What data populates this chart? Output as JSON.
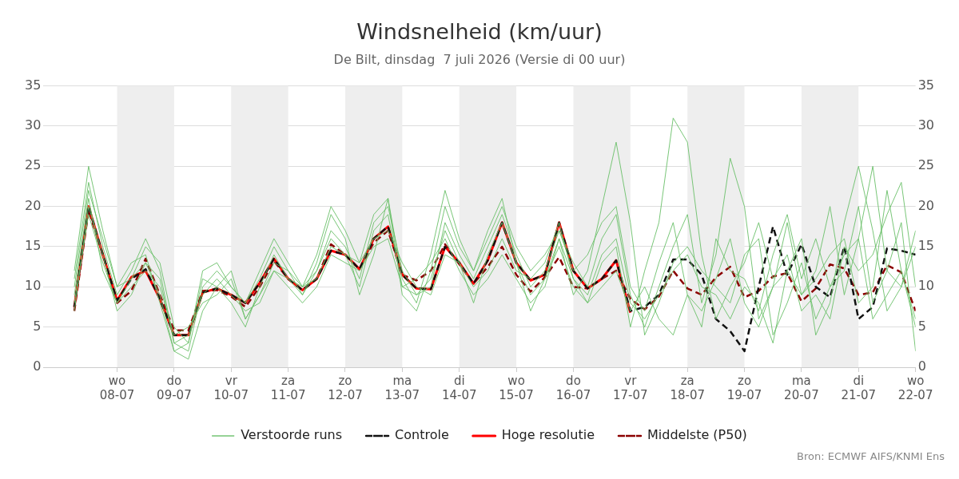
{
  "chart_data": {
    "type": "line",
    "title": "Windsnelheid (km/uur)",
    "subtitle": "De Bilt, dinsdag  7 juli 2026 (Versie di 00 uur)",
    "x": [
      "2026-07-07T06:00",
      "2026-07-07T12:00",
      "2026-07-07T18:00",
      "2026-07-08T00:00",
      "2026-07-08T06:00",
      "2026-07-08T12:00",
      "2026-07-08T18:00",
      "2026-07-09T00:00",
      "2026-07-09T06:00",
      "2026-07-09T12:00",
      "2026-07-09T18:00",
      "2026-07-10T00:00",
      "2026-07-10T06:00",
      "2026-07-10T12:00",
      "2026-07-10T18:00",
      "2026-07-11T00:00",
      "2026-07-11T06:00",
      "2026-07-11T12:00",
      "2026-07-11T18:00",
      "2026-07-12T00:00",
      "2026-07-12T06:00",
      "2026-07-12T12:00",
      "2026-07-12T18:00",
      "2026-07-13T00:00",
      "2026-07-13T06:00",
      "2026-07-13T12:00",
      "2026-07-13T18:00",
      "2026-07-14T00:00",
      "2026-07-14T06:00",
      "2026-07-14T12:00",
      "2026-07-14T18:00",
      "2026-07-15T00:00",
      "2026-07-15T06:00",
      "2026-07-15T12:00",
      "2026-07-15T18:00",
      "2026-07-16T00:00",
      "2026-07-16T06:00",
      "2026-07-16T12:00",
      "2026-07-16T18:00",
      "2026-07-17T00:00",
      "2026-07-17T06:00",
      "2026-07-17T12:00",
      "2026-07-17T18:00",
      "2026-07-18T00:00",
      "2026-07-18T06:00",
      "2026-07-18T12:00",
      "2026-07-18T18:00",
      "2026-07-19T00:00",
      "2026-07-19T06:00",
      "2026-07-19T12:00",
      "2026-07-19T18:00",
      "2026-07-20T00:00",
      "2026-07-20T06:00",
      "2026-07-20T12:00",
      "2026-07-20T18:00",
      "2026-07-21T00:00",
      "2026-07-21T06:00",
      "2026-07-21T12:00",
      "2026-07-21T18:00",
      "2026-07-22T00:00"
    ],
    "xlim": [
      "2026-07-06T17:00",
      "2026-07-22T00:00"
    ],
    "xticks": [
      {
        "value": "2026-07-08",
        "label": "wo\n08-07"
      },
      {
        "value": "2026-07-09",
        "label": "do\n09-07"
      },
      {
        "value": "2026-07-10",
        "label": "vr\n10-07"
      },
      {
        "value": "2026-07-11",
        "label": "za\n11-07"
      },
      {
        "value": "2026-07-12",
        "label": "zo\n12-07"
      },
      {
        "value": "2026-07-13",
        "label": "ma\n13-07"
      },
      {
        "value": "2026-07-14",
        "label": "di\n14-07"
      },
      {
        "value": "2026-07-15",
        "label": "wo\n15-07"
      },
      {
        "value": "2026-07-16",
        "label": "do\n16-07"
      },
      {
        "value": "2026-07-17",
        "label": "vr\n17-07"
      },
      {
        "value": "2026-07-18",
        "label": "za\n18-07"
      },
      {
        "value": "2026-07-19",
        "label": "zo\n19-07"
      },
      {
        "value": "2026-07-20",
        "label": "ma\n20-07"
      },
      {
        "value": "2026-07-21",
        "label": "di\n21-07"
      },
      {
        "value": "2026-07-22",
        "label": "wo\n22-07"
      }
    ],
    "ylim": [
      0,
      35
    ],
    "yticks": [
      0,
      5,
      10,
      15,
      20,
      25,
      30,
      35
    ],
    "y2lim": [
      0,
      35
    ],
    "y2ticks": [
      0,
      5,
      10,
      15,
      20,
      25,
      30,
      35
    ],
    "grid": "y",
    "legend": "bottom",
    "marker": "none",
    "bands": [
      {
        "axis": "x",
        "from": "2026-07-08",
        "to": "2026-07-09",
        "color": "#eeeeee"
      },
      {
        "axis": "x",
        "from": "2026-07-10",
        "to": "2026-07-11",
        "color": "#eeeeee"
      },
      {
        "axis": "x",
        "from": "2026-07-12",
        "to": "2026-07-13",
        "color": "#eeeeee"
      },
      {
        "axis": "x",
        "from": "2026-07-14",
        "to": "2026-07-15",
        "color": "#eeeeee"
      },
      {
        "axis": "x",
        "from": "2026-07-16",
        "to": "2026-07-17",
        "color": "#eeeeee"
      },
      {
        "axis": "x",
        "from": "2026-07-18",
        "to": "2026-07-19",
        "color": "#eeeeee"
      },
      {
        "axis": "x",
        "from": "2026-07-20",
        "to": "2026-07-21",
        "color": "#eeeeee"
      }
    ],
    "series": [
      {
        "name": "Verstoorde runs",
        "color": "#6abf69",
        "line_style": "solid",
        "values": [
          11,
          23,
          15,
          9,
          12,
          16,
          12,
          3,
          2,
          10,
          12,
          10,
          8,
          11,
          15,
          12,
          10,
          12,
          17,
          15,
          11,
          18,
          20,
          12,
          9,
          10,
          18,
          14,
          11,
          15,
          19,
          14,
          10,
          12,
          17,
          13,
          10,
          16,
          19,
          9,
          5,
          10,
          15,
          19,
          8,
          14,
          26,
          20,
          6,
          10,
          18,
          9,
          12,
          20,
          9,
          16,
          25,
          12,
          10,
          17
        ]
      },
      {
        "color": "#6abf69",
        "line_style": "solid",
        "values": [
          8,
          19,
          13,
          8,
          10,
          12,
          10,
          4,
          5,
          8,
          9,
          11,
          6,
          9,
          12,
          10,
          8,
          10,
          14,
          13,
          12,
          15,
          16,
          10,
          11,
          13,
          16,
          12,
          9,
          11,
          14,
          11,
          8,
          10,
          16,
          9,
          12,
          20,
          28,
          18,
          4,
          8,
          13,
          15,
          12,
          10,
          8,
          14,
          16,
          4,
          8,
          13,
          6,
          10,
          14,
          16,
          6,
          9,
          12,
          5
        ]
      },
      {
        "color": "#6abf69",
        "line_style": "solid",
        "values": [
          10,
          22,
          16,
          10,
          13,
          14,
          8,
          2,
          3,
          11,
          10,
          8,
          5,
          10,
          14,
          11,
          9,
          13,
          19,
          16,
          9,
          14,
          21,
          9,
          7,
          12,
          20,
          15,
          12,
          17,
          21,
          13,
          7,
          11,
          15,
          10,
          8,
          13,
          15,
          5,
          12,
          18,
          31,
          28,
          14,
          6,
          10,
          13,
          18,
          11,
          14,
          7,
          9,
          6,
          15,
          12,
          14,
          19,
          23,
          10
        ]
      },
      {
        "color": "#6abf69",
        "line_style": "solid",
        "values": [
          7,
          20,
          14,
          7,
          9,
          13,
          11,
          3,
          4,
          9,
          11,
          9,
          7,
          8,
          12,
          11,
          10,
          11,
          15,
          14,
          13,
          16,
          17,
          13,
          10,
          9,
          14,
          13,
          10,
          12,
          16,
          12,
          11,
          13,
          18,
          11,
          8,
          10,
          12,
          7,
          10,
          6,
          4,
          9,
          7,
          11,
          16,
          8,
          5,
          10,
          12,
          16,
          4,
          8,
          18,
          25,
          17,
          7,
          10,
          15
        ]
      },
      {
        "color": "#6abf69",
        "line_style": "solid",
        "values": [
          12,
          25,
          17,
          10,
          11,
          15,
          13,
          5,
          3,
          12,
          13,
          10,
          8,
          12,
          16,
          13,
          10,
          14,
          20,
          17,
          13,
          19,
          21,
          11,
          8,
          14,
          22,
          16,
          12,
          16,
          20,
          15,
          12,
          14,
          17,
          12,
          14,
          18,
          20,
          10,
          7,
          13,
          18,
          9,
          5,
          16,
          12,
          11,
          7,
          14,
          19,
          11,
          16,
          10,
          12,
          20,
          8,
          12,
          18,
          2
        ]
      },
      {
        "color": "#6abf69",
        "line_style": "solid",
        "values": [
          9,
          21,
          12,
          8,
          11,
          13,
          9,
          2,
          1,
          7,
          10,
          12,
          6,
          9,
          13,
          12,
          9,
          12,
          16,
          14,
          10,
          17,
          19,
          10,
          9,
          11,
          17,
          13,
          8,
          14,
          18,
          13,
          9,
          11,
          16,
          11,
          9,
          14,
          16,
          8,
          6,
          9,
          12,
          14,
          10,
          9,
          6,
          10,
          8,
          3,
          12,
          9,
          11,
          14,
          16,
          8,
          10,
          22,
          12,
          6
        ]
      },
      {
        "name": "Controle",
        "color": "#111111",
        "line_style": "dashed",
        "values": [
          7.5,
          20,
          14,
          8.3,
          11,
          12.2,
          8.5,
          4,
          4,
          9.3,
          9.8,
          9,
          8,
          10.5,
          13.5,
          11,
          9.6,
          11,
          14.5,
          14,
          12.2,
          16,
          17.5,
          11.5,
          9.8,
          9.7,
          15,
          13,
          10.4,
          13.3,
          18,
          13,
          10.8,
          11.5,
          18,
          12,
          9.8,
          11,
          13.3,
          7,
          7.5,
          9,
          13.4,
          13.4,
          11.5,
          6,
          4.5,
          2,
          10,
          17.5,
          11.5,
          15.3,
          10,
          8.7,
          15,
          6,
          7.5,
          14.8,
          14.5,
          14
        ]
      },
      {
        "name": "Hoge resolutie",
        "color": "#ff0000",
        "line_style": "solid",
        "values": [
          7.5,
          20,
          14,
          8.3,
          11.2,
          12,
          8.5,
          4,
          4,
          9.3,
          9.8,
          9,
          8,
          10.5,
          13.5,
          11,
          9.6,
          11,
          14.5,
          14,
          12.2,
          16,
          17.5,
          11.5,
          9.8,
          9.7,
          15,
          13,
          10.4,
          13.3,
          18,
          13,
          10.8,
          11.5,
          18,
          12,
          9.8,
          11,
          13.3,
          6.8,
          null,
          null,
          null,
          null,
          null,
          null,
          null,
          null,
          null,
          null,
          null,
          null,
          null,
          null,
          null,
          null,
          null,
          null,
          null,
          null
        ]
      },
      {
        "name": "Middelste (P50)",
        "color": "#8b0000",
        "line_style": "dashed",
        "values": [
          7,
          19.5,
          14,
          8,
          9.5,
          13.5,
          9,
          4.6,
          4.6,
          9.5,
          9.6,
          8.8,
          7.5,
          10,
          13.2,
          11,
          9.6,
          11,
          15.3,
          14,
          12.2,
          15.5,
          17,
          11.5,
          10.8,
          12,
          15.3,
          12.8,
          10.4,
          12.5,
          15,
          11.5,
          9.4,
          11.2,
          13.7,
          10,
          9.8,
          11,
          12,
          8.5,
          7.2,
          8.8,
          12,
          9.8,
          9,
          11.2,
          12.5,
          8.7,
          9.5,
          11.3,
          11.7,
          8.2,
          9.8,
          12.8,
          12.3,
          9,
          9.3,
          12.7,
          11.8,
          7
        ]
      }
    ],
    "annotations": [
      "Bron: ECMWF AIFS/KNMI Ens"
    ]
  }
}
